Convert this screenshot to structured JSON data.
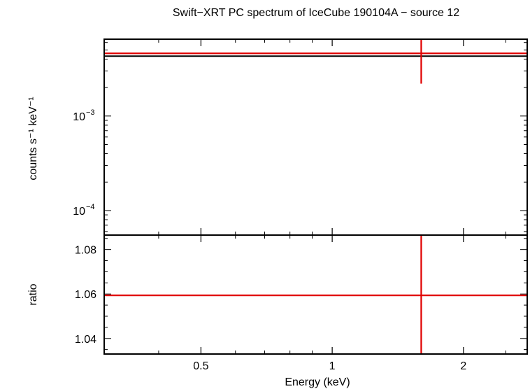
{
  "title": "Swift−XRT PC spectrum of IceCube 190104A − source 12",
  "colors": {
    "data": "#e00000",
    "model": "#000000",
    "axes": "#000000",
    "background": "#ffffff"
  },
  "chart_data": [
    {
      "type": "scatter",
      "panel": "spectrum",
      "ylabel": "counts s⁻¹ keV⁻¹",
      "yscale": "log",
      "ylim": [
        5.5e-05,
        0.0065
      ],
      "xscale": "log",
      "xlim": [
        0.3,
        2.8
      ],
      "yticks": [
        {
          "value": 0.001,
          "base": "10",
          "exp": "−3"
        },
        {
          "value": 0.0001,
          "base": "10",
          "exp": "−4"
        }
      ],
      "series": [
        {
          "role": "data",
          "points": [
            {
              "x": 1.6,
              "xerr": [
                0.3,
                2.8
              ],
              "y": 0.0046,
              "yerr": [
                0.0022,
                0.0065
              ]
            }
          ]
        },
        {
          "role": "model",
          "points": [
            {
              "x": [
                0.3,
                2.8
              ],
              "y": 0.0043
            }
          ]
        }
      ]
    },
    {
      "type": "scatter",
      "panel": "ratio",
      "xlabel": "Energy (keV)",
      "ylabel": "ratio",
      "yscale": "linear",
      "ylim": [
        1.033,
        1.0865
      ],
      "xscale": "log",
      "xlim": [
        0.3,
        2.8
      ],
      "xticks": [
        0.5,
        1,
        2
      ],
      "xticklabels": [
        "0.5",
        "1",
        "2"
      ],
      "yticks": [
        1.04,
        1.06,
        1.08
      ],
      "yticklabels": [
        "1.04",
        "1.06",
        "1.08"
      ],
      "series": [
        {
          "role": "data",
          "points": [
            {
              "x": 1.6,
              "xerr": [
                0.3,
                2.8
              ],
              "y": 1.0594,
              "yerr": [
                1.033,
                1.0865
              ]
            }
          ]
        }
      ]
    }
  ]
}
